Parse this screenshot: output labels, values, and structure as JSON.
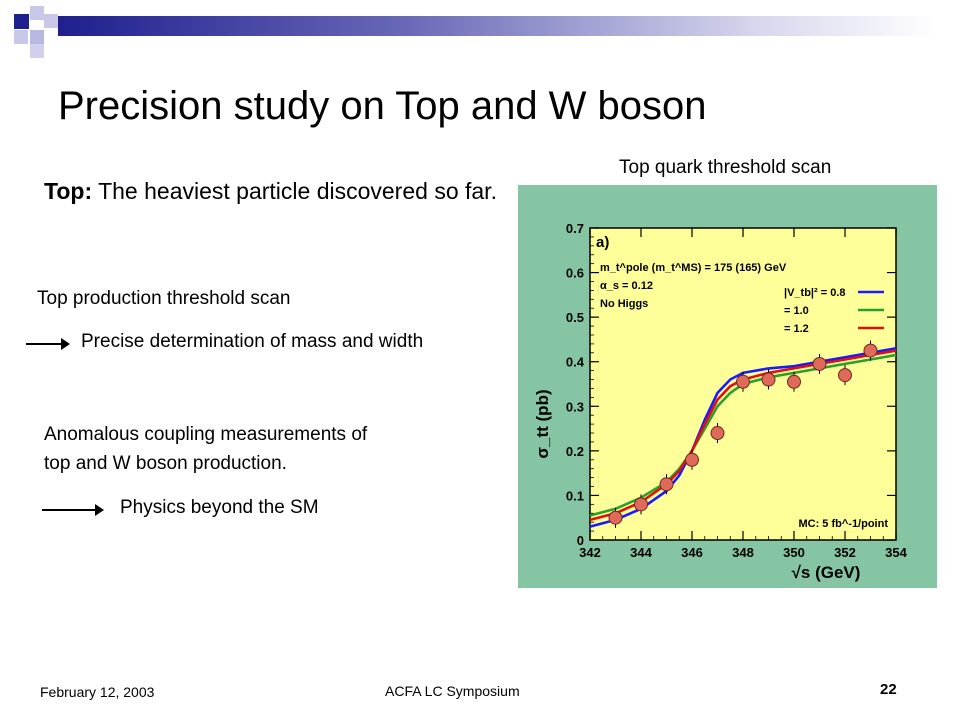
{
  "slide": {
    "title": "Precision study on Top and W boson",
    "top_label": "Top:",
    "top_text": " The heaviest particle discovered so far.",
    "threshold_heading": "Top production threshold scan",
    "threshold_result": "Precise determination of mass and width",
    "anomalous_line1": "Anomalous coupling measurements of",
    "anomalous_line2": "top and W boson production.",
    "anomalous_result": "Physics beyond the SM",
    "figure_caption": "Top quark threshold scan"
  },
  "footer": {
    "date": "February 12, 2003",
    "center": "ACFA LC Symposium",
    "page": "22"
  },
  "colors": {
    "plot_frame": "#86c5a4",
    "plot_area": "#ffff99",
    "point_fill": "#e06a5a",
    "blue_curve": "#1a1aff",
    "green_curve": "#2aa02a",
    "red_curve": "#e01010"
  },
  "chart_data": {
    "type": "line",
    "panel_label": "a)",
    "annotations": [
      "m_t^pole (m_t^MS) = 175 (165) GeV",
      "α_s = 0.12",
      "No Higgs",
      "MC: 5 fb^-1/point"
    ],
    "xlabel": "√s (GeV)",
    "ylabel": "σ_tt (pb)",
    "xlim": [
      342,
      354
    ],
    "ylim": [
      0,
      0.7
    ],
    "xticks": [
      342,
      344,
      346,
      348,
      350,
      352,
      354
    ],
    "yticks": [
      0,
      0.1,
      0.2,
      0.3,
      0.4,
      0.5,
      0.6,
      0.7
    ],
    "legend_position": "top-right",
    "series": [
      {
        "name": "|V_tb|² = 0.8",
        "color": "#1a1aff",
        "x": [
          342,
          343,
          344,
          345,
          345.5,
          346,
          346.5,
          347,
          347.5,
          348,
          349,
          350,
          351,
          352,
          353,
          354
        ],
        "y": [
          0.03,
          0.045,
          0.07,
          0.11,
          0.145,
          0.2,
          0.27,
          0.33,
          0.36,
          0.375,
          0.385,
          0.39,
          0.4,
          0.41,
          0.42,
          0.43
        ]
      },
      {
        "name": "= 1.0",
        "color": "#2aa02a",
        "x": [
          342,
          343,
          344,
          345,
          345.5,
          346,
          346.5,
          347,
          347.5,
          348,
          349,
          350,
          351,
          352,
          353,
          354
        ],
        "y": [
          0.055,
          0.07,
          0.095,
          0.13,
          0.16,
          0.2,
          0.25,
          0.3,
          0.33,
          0.35,
          0.365,
          0.375,
          0.385,
          0.395,
          0.405,
          0.415
        ]
      },
      {
        "name": "= 1.2",
        "color": "#e01010",
        "x": [
          342,
          343,
          344,
          345,
          345.5,
          346,
          346.5,
          347,
          347.5,
          348,
          349,
          350,
          351,
          352,
          353,
          354
        ],
        "y": [
          0.045,
          0.06,
          0.085,
          0.125,
          0.155,
          0.2,
          0.26,
          0.315,
          0.345,
          0.36,
          0.375,
          0.385,
          0.395,
          0.405,
          0.415,
          0.425
        ]
      }
    ],
    "points": {
      "x": [
        343,
        344,
        345,
        346,
        347,
        348,
        349,
        350,
        351,
        352,
        353
      ],
      "y": [
        0.05,
        0.08,
        0.125,
        0.18,
        0.24,
        0.355,
        0.36,
        0.355,
        0.395,
        0.37,
        0.425
      ]
    }
  }
}
